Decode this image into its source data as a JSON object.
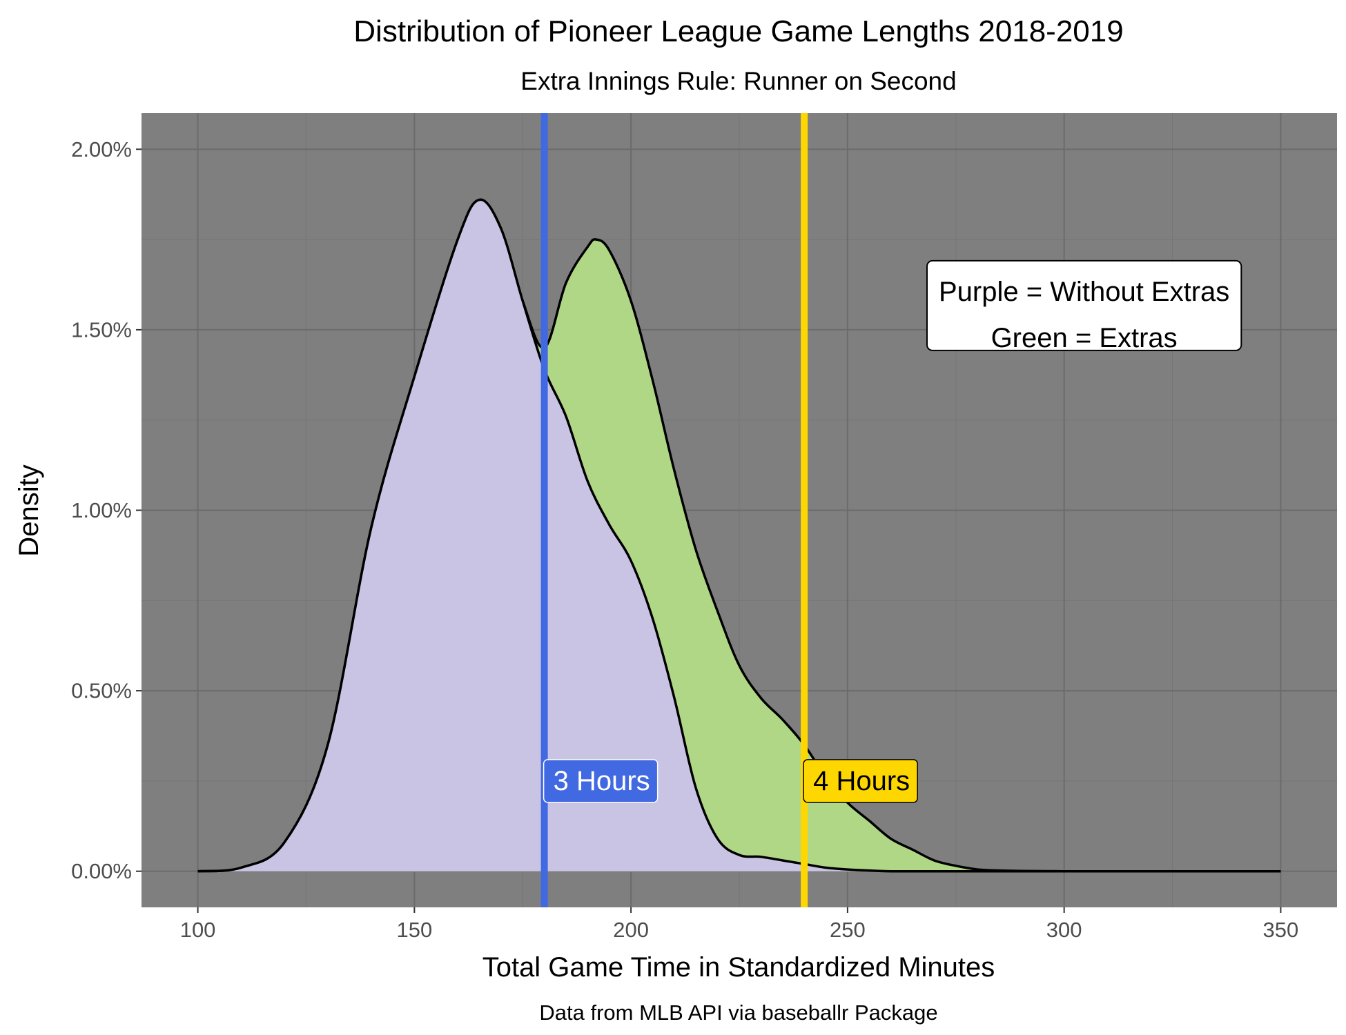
{
  "chart_data": {
    "type": "area",
    "title": "Distribution of Pioneer League Game Lengths 2018-2019",
    "subtitle": "Extra Innings Rule: Runner on Second",
    "xlabel": "Total Game Time in Standardized Minutes",
    "ylabel": "Density",
    "caption": "Data from MLB API via baseballr Package",
    "xlim": [
      87,
      363
    ],
    "ylim": [
      -0.001,
      0.021
    ],
    "x_ticks": [
      100,
      150,
      200,
      250,
      300,
      350
    ],
    "y_ticks": [
      0,
      0.005,
      0.01,
      0.015,
      0.02
    ],
    "x_tick_labels": [
      "100",
      "150",
      "200",
      "250",
      "300",
      "350"
    ],
    "y_tick_labels": [
      "0.00%",
      "0.50%",
      "1.00%",
      "1.50%",
      "2.00%"
    ],
    "grid": true,
    "series": [
      {
        "key": "extras",
        "fill": "#b0d785",
        "x": [
          100,
          110,
          120,
          130,
          140,
          150,
          160,
          165,
          170,
          175,
          180,
          185,
          190,
          192,
          195,
          200,
          205,
          210,
          215,
          220,
          225,
          230,
          235,
          240,
          245,
          250,
          255,
          260,
          265,
          270,
          275,
          280,
          285,
          290,
          300,
          320,
          350
        ],
        "y": [
          0,
          0.0001,
          0.0008,
          0.0035,
          0.0095,
          0.0137,
          0.0175,
          0.0186,
          0.0178,
          0.0158,
          0.0145,
          0.0163,
          0.0173,
          0.0175,
          0.0172,
          0.0158,
          0.0136,
          0.0111,
          0.0089,
          0.0072,
          0.0057,
          0.0048,
          0.0042,
          0.0035,
          0.0026,
          0.0019,
          0.0014,
          0.0009,
          0.0006,
          0.0003,
          0.00015,
          5e-05,
          2e-05,
          1e-05,
          0,
          0,
          0
        ]
      },
      {
        "key": "without_extras",
        "fill": "#c9c3e4",
        "x": [
          100,
          110,
          120,
          130,
          140,
          150,
          160,
          165,
          170,
          175,
          180,
          185,
          190,
          195,
          200,
          205,
          210,
          215,
          220,
          225,
          230,
          235,
          240,
          245,
          250,
          255,
          260,
          270,
          280,
          300,
          350
        ],
        "y": [
          0,
          0.0001,
          0.0008,
          0.0035,
          0.0095,
          0.0137,
          0.0175,
          0.0186,
          0.0178,
          0.0158,
          0.0139,
          0.0126,
          0.0108,
          0.0096,
          0.0086,
          0.007,
          0.0048,
          0.0023,
          0.0009,
          0.00045,
          0.0004,
          0.0003,
          0.0002,
          0.0001,
          5e-05,
          2e-05,
          0,
          0,
          0,
          0,
          0
        ]
      }
    ],
    "reference_lines": [
      {
        "x": 180,
        "color": "#4169e1",
        "label": "3 Hours",
        "label_color": "#ffffff",
        "label_y": 0.0025
      },
      {
        "x": 240,
        "color": "#ffd700",
        "label": "4 Hours",
        "label_color": "#000000",
        "label_y": 0.0025
      }
    ],
    "annotation": {
      "lines": [
        "Purple = Without Extras",
        "Green = Extras"
      ],
      "x": 260,
      "y": 0.015
    },
    "colors": {
      "panel_background": "#7f7f7f",
      "grid_major": "#6b6b6b",
      "grid_minor": "#767676",
      "outline": "#000000",
      "tick_label": "#4d4d4d"
    }
  }
}
